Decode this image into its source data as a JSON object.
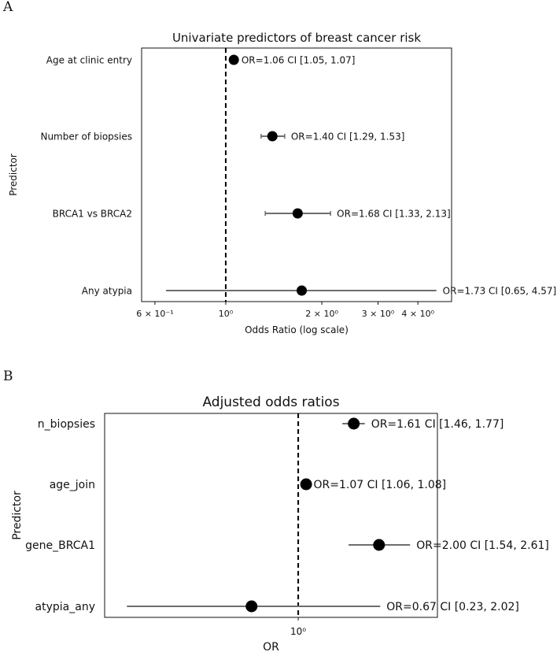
{
  "chart_data": [
    {
      "panel_label": "A",
      "type": "forest",
      "title": "Univariate predictors of breast cancer risk",
      "xlabel": "Odds Ratio (log scale)",
      "ylabel": "Predictor",
      "xscale": "log",
      "xlim": [
        0.545,
        5.1
      ],
      "reference_line": 1.0,
      "x_ticks": [
        {
          "value": 0.6,
          "label": "6 × 10⁻¹"
        },
        {
          "value": 1.0,
          "label": "10⁰"
        },
        {
          "value": 2.0,
          "label": "2 × 10⁰"
        },
        {
          "value": 3.0,
          "label": "3 × 10⁰"
        },
        {
          "value": 4.0,
          "label": "4 × 10⁰"
        }
      ],
      "rows": [
        {
          "label": "Age at clinic entry",
          "or": 1.06,
          "ci_low": 1.05,
          "ci_high": 1.07,
          "text": "OR=1.06  CI [1.05, 1.07]"
        },
        {
          "label": "Number of biopsies",
          "or": 1.4,
          "ci_low": 1.29,
          "ci_high": 1.53,
          "text": "OR=1.40  CI [1.29, 1.53]"
        },
        {
          "label": "BRCA1 vs BRCA2",
          "or": 1.68,
          "ci_low": 1.33,
          "ci_high": 2.13,
          "text": "OR=1.68  CI [1.33, 2.13]"
        },
        {
          "label": "Any atypia",
          "or": 1.73,
          "ci_low": 0.65,
          "ci_high": 4.57,
          "text": "OR=1.73  CI [0.65, 4.57]"
        }
      ],
      "colors": {
        "marker": "#000000",
        "ci": "#6e6e6e",
        "reference": "#000000"
      }
    },
    {
      "panel_label": "B",
      "type": "forest",
      "title": "Adjusted odds ratios",
      "xlabel": "OR",
      "ylabel": "Predictor",
      "xscale": "log",
      "xlim": [
        0.19,
        3.3
      ],
      "reference_line": 1.0,
      "x_ticks": [
        {
          "value": 1.0,
          "label": "10⁰"
        }
      ],
      "rows": [
        {
          "label": "n_biopsies",
          "or": 1.61,
          "ci_low": 1.46,
          "ci_high": 1.77,
          "text": "OR=1.61 CI [1.46, 1.77]"
        },
        {
          "label": "age_join",
          "or": 1.07,
          "ci_low": 1.06,
          "ci_high": 1.08,
          "text": "OR=1.07 CI [1.06, 1.08]"
        },
        {
          "label": "gene_BRCA1",
          "or": 2.0,
          "ci_low": 1.54,
          "ci_high": 2.61,
          "text": "OR=2.00 CI [1.54, 2.61]"
        },
        {
          "label": "atypia_any",
          "or": 0.67,
          "ci_low": 0.23,
          "ci_high": 2.02,
          "text": "OR=0.67 CI [0.23, 2.02]"
        }
      ],
      "colors": {
        "marker": "#000000",
        "ci": "#6e6e6e",
        "reference": "#000000"
      }
    }
  ]
}
